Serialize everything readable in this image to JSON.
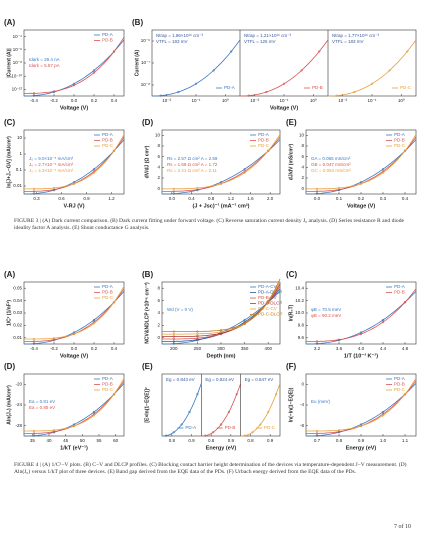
{
  "figure3": {
    "panels": [
      {
        "label": "(A)",
        "xlabel": "Voltage (V)",
        "ylabel": "|Current (A)|",
        "xticks": [
          "-0.4",
          "-0.2",
          "0.0",
          "0.2",
          "0.4"
        ],
        "yticks": [
          "10⁻⁴",
          "10⁻⁶",
          "10⁻⁸",
          "10⁻¹⁰",
          "10⁻¹²"
        ],
        "legend": [
          {
            "name": "PD-A",
            "color": "#3a78c2"
          },
          {
            "name": "PD-B",
            "color": "#d9534f"
          }
        ],
        "annotations": [
          "Idark = 29.4 nA",
          "Idark = 5.57 pA"
        ]
      },
      {
        "label": "(B)",
        "xlabel": "Voltage (V)",
        "ylabel": "Current (A)",
        "xticks": [
          "10⁻²",
          "10⁻¹",
          "10⁰",
          "10⁻²",
          "10⁻¹",
          "10⁰",
          "10⁻²",
          "10⁻¹",
          "10⁰"
        ],
        "yticks": [
          "10⁻⁶",
          "10⁻⁷",
          "10⁻⁸"
        ],
        "legend": [
          {
            "name": "PD-A",
            "color": "#3a78c2"
          },
          {
            "name": "PD-B",
            "color": "#d9534f"
          },
          {
            "name": "PD-C",
            "color": "#e8a03c"
          }
        ],
        "annotations": [
          [
            "Ntrap = 1.86×10¹⁶ cm⁻³",
            "VTFL = 193 mV"
          ],
          [
            "Ntrap = 1.21×10¹⁶ cm⁻³",
            "VTFL = 125 mV"
          ],
          [
            "Ntrap = 1.77×10¹⁶ cm⁻³",
            "VTFL = 183 mV"
          ]
        ]
      },
      {
        "label": "(C)",
        "xlabel": "V-RJ (V)",
        "ylabel": "ln[J+J₀−GV] (mA/cm²)",
        "xticks": [
          "0.3",
          "0.6",
          "0.9",
          "1.2"
        ],
        "yticks": [
          "10",
          "1",
          "0.1",
          "0.01"
        ],
        "legend": [
          {
            "name": "PD-A",
            "color": "#3a78c2"
          },
          {
            "name": "PD-B",
            "color": "#d9534f"
          },
          {
            "name": "PD-C",
            "color": "#e8a03c"
          }
        ],
        "annotations": [
          "J₀ = 9.0×10⁻⁵ mA/cm²",
          "J₀ = 2.7×10⁻⁵ mA/cm²",
          "J₀ = 4.3×10⁻⁵ mA/cm²"
        ]
      },
      {
        "label": "(D)",
        "xlabel": "(J + Jsc)⁻¹ (mA⁻¹ cm²)",
        "ylabel": "dV/dJ (Ω cm²)",
        "xticks": [
          "0.0",
          "0.4",
          "0.8",
          "1.2",
          "1.6",
          "2.0"
        ],
        "yticks": [
          "10",
          "8",
          "6",
          "4",
          "2",
          "0"
        ],
        "legend": [
          {
            "name": "PD-A",
            "color": "#3a78c2"
          },
          {
            "name": "PD-B",
            "color": "#d9534f"
          },
          {
            "name": "PD-C",
            "color": "#e8a03c"
          }
        ],
        "annotations": [
          "Rs = 2.57 Ω cm²   A = 2.59",
          "Rs = 1.59 Ω cm²   A = 1.72",
          "Rs = 2.21 Ω cm²   A = 2.11"
        ]
      },
      {
        "label": "(E)",
        "xlabel": "Voltage (V)",
        "ylabel": "dJ/dV (mS/cm²)",
        "xticks": [
          "0.0",
          "0.1",
          "0.2",
          "0.3",
          "0.4"
        ],
        "yticks": [
          "10",
          "8",
          "6",
          "4",
          "2",
          "0"
        ],
        "legend": [
          {
            "name": "PD-A",
            "color": "#3a78c2"
          },
          {
            "name": "PD-B",
            "color": "#d9534f"
          },
          {
            "name": "PD-C",
            "color": "#e8a03c"
          }
        ],
        "annotations": [
          "GA = 0.065 mS/cm²",
          "GB = 0.047 mS/cm²",
          "GC = 0.054 mS/cm²"
        ]
      }
    ],
    "caption": "FIGURE 3 | (A) Dark current comparison. (B) Dark current fitting under forward voltage. (C) Reverse saturation current density J₀ analysis. (D) Series resistance R and diode ideality factor A analysis. (E) Shunt conductance G analysis."
  },
  "figure4": {
    "panels": [
      {
        "label": "(A)",
        "xlabel": "Voltage (V)",
        "ylabel": "1/C² (1/nF²)",
        "xticks": [
          "-0.4",
          "-0.2",
          "0.0",
          "0.2",
          "0.4"
        ],
        "yticks": [
          "0.05",
          "0.04",
          "0.03",
          "0.02",
          "0.01"
        ],
        "legend": [
          {
            "name": "PD-A",
            "color": "#3a78c2"
          },
          {
            "name": "PD-B",
            "color": "#d9534f"
          },
          {
            "name": "PD-C",
            "color": "#e8a03c"
          }
        ],
        "annotations": []
      },
      {
        "label": "(B)",
        "xlabel": "Depth (nm)",
        "ylabel": "NCV&NDLCP (×10¹⁶ cm⁻³)",
        "xticks": [
          "200",
          "250",
          "300",
          "350",
          "400"
        ],
        "yticks": [
          "8",
          "6",
          "4",
          "2",
          "0"
        ],
        "legend": [
          {
            "name": "PD-A-CV",
            "color": "#3a78c2"
          },
          {
            "name": "PD-A-DLCP",
            "color": "#2a5a9a"
          },
          {
            "name": "PD-B-CV",
            "color": "#d9534f"
          },
          {
            "name": "PD-B-DLCP",
            "color": "#a83a36"
          },
          {
            "name": "PD-C-CV",
            "color": "#e8a03c"
          },
          {
            "name": "PD-C-DLCP",
            "color": "#c07a20"
          }
        ],
        "annotations": [
          "Wd (V = 0 V)"
        ]
      },
      {
        "label": "(C)",
        "xlabel": "1/T (10⁻³ K⁻¹)",
        "ylabel": "ln(R₀T)",
        "xticks": [
          "3.2",
          "3.6",
          "4.0",
          "4.4",
          "4.8"
        ],
        "yticks": [
          "10.4",
          "10.2",
          "10.0",
          "9.8",
          "9.6"
        ],
        "legend": [
          {
            "name": "PD-A",
            "color": "#3a78c2"
          },
          {
            "name": "PD-B",
            "color": "#d9534f"
          }
        ],
        "annotations": [
          "φB = 70.5 meV",
          "φB = 90.2 meV"
        ]
      },
      {
        "label": "(D)",
        "xlabel": "1/kT (eV⁻¹)",
        "ylabel": "Aln(J₀) (mA/cm²)",
        "xticks": [
          "35",
          "40",
          "45",
          "50",
          "55",
          "60"
        ],
        "yticks": [
          "-20",
          "-24",
          "-28"
        ],
        "legend": [
          {
            "name": "PD-A",
            "color": "#3a78c2"
          },
          {
            "name": "PD-B",
            "color": "#d9534f"
          },
          {
            "name": "PD-C",
            "color": "#e8a03c"
          }
        ],
        "annotations": [
          "Ea = 0.81 eV",
          "Ea = 0.85 eV"
        ]
      },
      {
        "label": "(E)",
        "xlabel": "Energy (eV)",
        "ylabel": "[E×ln(1−EQE)]²",
        "xticks": [
          "0.8",
          "0.9",
          "0.8",
          "0.9",
          "0.8",
          "0.9"
        ],
        "yticks": [],
        "legend": [
          {
            "name": "PD-A",
            "color": "#3a78c2"
          },
          {
            "name": "PD-B",
            "color": "#d9534f"
          },
          {
            "name": "PD-C",
            "color": "#e8a03c"
          }
        ],
        "annotations": [
          [
            "Eg = 0.843 eV"
          ],
          [
            "Eg = 0.824 eV"
          ],
          [
            "Eg = 0.847 eV"
          ]
        ]
      },
      {
        "label": "(F)",
        "xlabel": "Energy (eV)",
        "ylabel": "ln(−ln(1−EQE))",
        "xticks": [
          "0.7",
          "0.8",
          "0.9",
          "1.0",
          "1.1"
        ],
        "yticks": [
          "0",
          "-4",
          "-8"
        ],
        "legend": [
          {
            "name": "PD-A",
            "color": "#3a78c2"
          },
          {
            "name": "PD-B",
            "color": "#d9534f"
          },
          {
            "name": "PD-C",
            "color": "#e8a03c"
          }
        ],
        "annotations": [
          "Eu (meV)"
        ]
      }
    ],
    "caption": "FIGURE 4 | (A) 1/C²−V plots. (B) C−V and DLCP profiles. (C) Blocking contact barrier height determination of the devices via temperature-dependent J−V measurement. (D) Aln(J₀) versus 1/kT plot of three devices. (E) Band gap derived from the EQE data of the PDs. (F) Urbach energy derived from the EQE data of the PDs."
  },
  "page_number": "7 of 10"
}
